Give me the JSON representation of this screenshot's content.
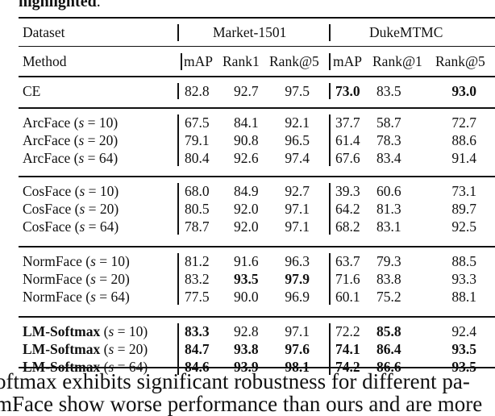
{
  "caption_top": {
    "bold": "highlighted",
    "rest": "."
  },
  "header": {
    "dataset_label": "Dataset",
    "datasets": [
      "Market-1501",
      "DukeMTMC"
    ],
    "method_label": "Method",
    "columns": [
      "mAP",
      "Rank1",
      "Rank@5",
      "mAP",
      "Rank@1",
      "Rank@5"
    ]
  },
  "groups": [
    {
      "rows": [
        {
          "method": "CE",
          "param": "",
          "values": [
            "82.8",
            "92.7",
            "97.5",
            "73.0",
            "83.5",
            "93.0"
          ],
          "bold": [
            false,
            false,
            false,
            true,
            false,
            true
          ]
        }
      ]
    },
    {
      "rows": [
        {
          "method": "ArcFace",
          "param": "s = 10",
          "values": [
            "67.5",
            "84.1",
            "92.1",
            "37.7",
            "58.7",
            "72.7"
          ],
          "bold": [
            false,
            false,
            false,
            false,
            false,
            false
          ]
        },
        {
          "method": "ArcFace",
          "param": "s = 20",
          "values": [
            "79.1",
            "90.8",
            "96.5",
            "61.4",
            "78.3",
            "88.6"
          ],
          "bold": [
            false,
            false,
            false,
            false,
            false,
            false
          ]
        },
        {
          "method": "ArcFace",
          "param": "s = 64",
          "values": [
            "80.4",
            "92.6",
            "97.4",
            "67.6",
            "83.4",
            "91.4"
          ],
          "bold": [
            false,
            false,
            false,
            false,
            false,
            false
          ]
        }
      ]
    },
    {
      "rows": [
        {
          "method": "CosFace",
          "param": "s = 10",
          "values": [
            "68.0",
            "84.9",
            "92.7",
            "39.3",
            "60.6",
            "73.1"
          ],
          "bold": [
            false,
            false,
            false,
            false,
            false,
            false
          ]
        },
        {
          "method": "CosFace",
          "param": "s = 20",
          "values": [
            "80.5",
            "92.0",
            "97.1",
            "64.2",
            "81.3",
            "89.7"
          ],
          "bold": [
            false,
            false,
            false,
            false,
            false,
            false
          ]
        },
        {
          "method": "CosFace",
          "param": "s = 64",
          "values": [
            "78.7",
            "92.0",
            "97.1",
            "68.2",
            "83.1",
            "92.5"
          ],
          "bold": [
            false,
            false,
            false,
            false,
            false,
            false
          ]
        }
      ]
    },
    {
      "rows": [
        {
          "method": "NormFace",
          "param": "s = 10",
          "values": [
            "81.2",
            "91.6",
            "96.3",
            "63.7",
            "79.3",
            "88.5"
          ],
          "bold": [
            false,
            false,
            false,
            false,
            false,
            false
          ]
        },
        {
          "method": "NormFace",
          "param": "s = 20",
          "values": [
            "83.2",
            "93.5",
            "97.9",
            "71.6",
            "83.8",
            "93.3"
          ],
          "bold": [
            false,
            true,
            true,
            false,
            false,
            false
          ]
        },
        {
          "method": "NormFace",
          "param": "s = 64",
          "values": [
            "77.5",
            "90.0",
            "96.9",
            "60.1",
            "75.2",
            "88.1"
          ],
          "bold": [
            false,
            false,
            false,
            false,
            false,
            false
          ]
        }
      ]
    },
    {
      "rows": [
        {
          "method": "LM-Softmax",
          "method_bold": true,
          "param": "s = 10",
          "values": [
            "83.3",
            "92.8",
            "97.1",
            "72.2",
            "85.8",
            "92.4"
          ],
          "bold": [
            true,
            false,
            false,
            false,
            true,
            false
          ]
        },
        {
          "method": "LM-Softmax",
          "method_bold": true,
          "param": "s = 20",
          "values": [
            "84.7",
            "93.8",
            "97.6",
            "74.1",
            "86.4",
            "93.5"
          ],
          "bold": [
            true,
            true,
            true,
            true,
            true,
            true
          ]
        },
        {
          "method": "LM-Softmax",
          "method_bold": true,
          "param": "s = 64",
          "values": [
            "84.6",
            "93.9",
            "98.1",
            "74.2",
            "86.6",
            "93.5"
          ],
          "bold": [
            true,
            true,
            true,
            true,
            true,
            true
          ]
        }
      ]
    }
  ],
  "body_text": [
    "oftmax exhibits significant robustness for different pa-",
    "mFace show worse performance than ours and are more"
  ]
}
